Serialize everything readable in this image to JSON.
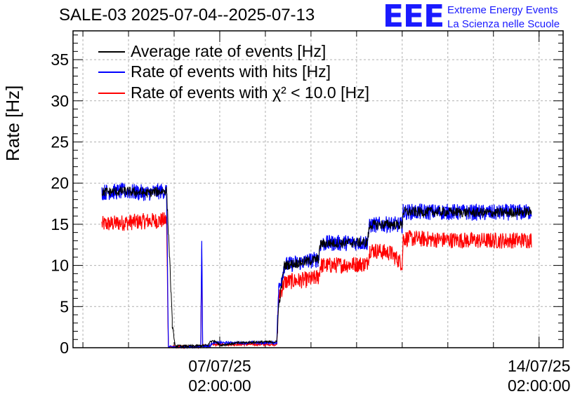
{
  "chart_data": {
    "type": "line",
    "title": "SALE-03 2025-07-04--2025-07-13",
    "ylabel": "Rate [Hz]",
    "xlabel": "",
    "ylim": [
      0,
      38.5
    ],
    "yticks": [
      0,
      5,
      10,
      15,
      20,
      25,
      30,
      35
    ],
    "xlim": [
      "2025-07-03T20:48",
      "2025-07-14T14:40"
    ],
    "xticks": [
      {
        "value": "2025-07-07T02:00",
        "label_date": "07/07/25",
        "label_time": "02:00:00"
      },
      {
        "value": "2025-07-14T02:00",
        "label_date": "14/07/25",
        "label_time": "02:00:00"
      }
    ],
    "grid": true,
    "legend_position": "top-left",
    "series": [
      {
        "name": "Average rate of events [Hz]",
        "color": "#000000",
        "points": [
          [
            "2025-07-04T12:00",
            18.9
          ],
          [
            "2025-07-05T00:00",
            19.0
          ],
          [
            "2025-07-05T12:00",
            18.8
          ],
          [
            "2025-07-05T22:00",
            19.1
          ],
          [
            "2025-07-05T23:30",
            11.5
          ],
          [
            "2025-07-06T01:00",
            3.0
          ],
          [
            "2025-07-06T02:30",
            0.2
          ],
          [
            "2025-07-06T12:00",
            0.2
          ],
          [
            "2025-07-06T20:00",
            0.3
          ],
          [
            "2025-07-06T21:00",
            0.8
          ],
          [
            "2025-07-07T00:00",
            0.8
          ],
          [
            "2025-07-07T02:00",
            0.3
          ],
          [
            "2025-07-07T12:00",
            0.6
          ],
          [
            "2025-07-08T00:00",
            0.7
          ],
          [
            "2025-07-08T08:00",
            0.7
          ],
          [
            "2025-07-08T09:00",
            5.0
          ],
          [
            "2025-07-08T12:00",
            10.0
          ],
          [
            "2025-07-09T02:00",
            10.6
          ],
          [
            "2025-07-09T06:00",
            10.8
          ],
          [
            "2025-07-09T07:00",
            12.6
          ],
          [
            "2025-07-09T12:00",
            12.7
          ],
          [
            "2025-07-10T07:30",
            12.8
          ],
          [
            "2025-07-10T09:00",
            14.9
          ],
          [
            "2025-07-10T20:00",
            15.0
          ],
          [
            "2025-07-11T02:00",
            14.9
          ],
          [
            "2025-07-11T02:30",
            16.5
          ],
          [
            "2025-07-12T00:00",
            16.5
          ],
          [
            "2025-07-13T00:00",
            16.4
          ],
          [
            "2025-07-13T22:00",
            16.5
          ]
        ]
      },
      {
        "name": "Rate of events with hits [Hz]",
        "color": "#0000ff",
        "points": [
          [
            "2025-07-04T12:00",
            18.9
          ],
          [
            "2025-07-05T00:00",
            19.0
          ],
          [
            "2025-07-05T12:00",
            18.8
          ],
          [
            "2025-07-05T22:00",
            19.1
          ],
          [
            "2025-07-05T23:00",
            0.1
          ],
          [
            "2025-07-06T12:00",
            0.1
          ],
          [
            "2025-07-06T16:00",
            0.1
          ],
          [
            "2025-07-06T16:30",
            13.7
          ],
          [
            "2025-07-06T17:00",
            0.2
          ],
          [
            "2025-07-06T21:00",
            0.2
          ],
          [
            "2025-07-06T22:00",
            0.6
          ],
          [
            "2025-07-07T12:00",
            0.6
          ],
          [
            "2025-07-08T08:00",
            0.6
          ],
          [
            "2025-07-08T09:00",
            7.0
          ],
          [
            "2025-07-08T12:00",
            10.0
          ],
          [
            "2025-07-09T02:00",
            10.6
          ],
          [
            "2025-07-09T06:00",
            10.8
          ],
          [
            "2025-07-09T07:00",
            12.6
          ],
          [
            "2025-07-09T12:00",
            12.7
          ],
          [
            "2025-07-10T07:30",
            12.8
          ],
          [
            "2025-07-10T09:00",
            14.9
          ],
          [
            "2025-07-10T20:00",
            15.0
          ],
          [
            "2025-07-11T02:00",
            14.9
          ],
          [
            "2025-07-11T02:30",
            16.5
          ],
          [
            "2025-07-12T00:00",
            16.5
          ],
          [
            "2025-07-13T00:00",
            16.4
          ],
          [
            "2025-07-13T22:00",
            16.5
          ]
        ]
      },
      {
        "name": "Rate of events with χ² < 10.0 [Hz]",
        "color": "#ff0000",
        "points": [
          [
            "2025-07-04T12:00",
            15.0
          ],
          [
            "2025-07-05T00:00",
            15.2
          ],
          [
            "2025-07-05T12:00",
            15.4
          ],
          [
            "2025-07-05T22:00",
            15.5
          ],
          [
            "2025-07-05T23:00",
            0.1
          ],
          [
            "2025-07-06T12:00",
            0.1
          ],
          [
            "2025-07-06T16:00",
            0.1
          ],
          [
            "2025-07-06T16:30",
            11.0
          ],
          [
            "2025-07-06T17:00",
            0.2
          ],
          [
            "2025-07-06T21:00",
            0.2
          ],
          [
            "2025-07-06T22:00",
            0.4
          ],
          [
            "2025-07-07T12:00",
            0.4
          ],
          [
            "2025-07-08T08:00",
            0.4
          ],
          [
            "2025-07-08T09:00",
            6.0
          ],
          [
            "2025-07-08T12:00",
            8.0
          ],
          [
            "2025-07-09T02:00",
            8.3
          ],
          [
            "2025-07-09T06:00",
            8.6
          ],
          [
            "2025-07-09T07:00",
            10.0
          ],
          [
            "2025-07-09T12:00",
            10.0
          ],
          [
            "2025-07-10T07:30",
            10.2
          ],
          [
            "2025-07-10T09:00",
            11.9
          ],
          [
            "2025-07-10T20:00",
            11.5
          ],
          [
            "2025-07-11T02:00",
            10.2
          ],
          [
            "2025-07-11T02:30",
            13.3
          ],
          [
            "2025-07-12T00:00",
            13.1
          ],
          [
            "2025-07-13T00:00",
            13.0
          ],
          [
            "2025-07-13T22:00",
            13.1
          ]
        ]
      }
    ]
  },
  "logo": {
    "mark": "EEE",
    "line1": "Extreme Energy Events",
    "line2": "La Scienza nelle Scuole",
    "color": "#1a1aff"
  }
}
